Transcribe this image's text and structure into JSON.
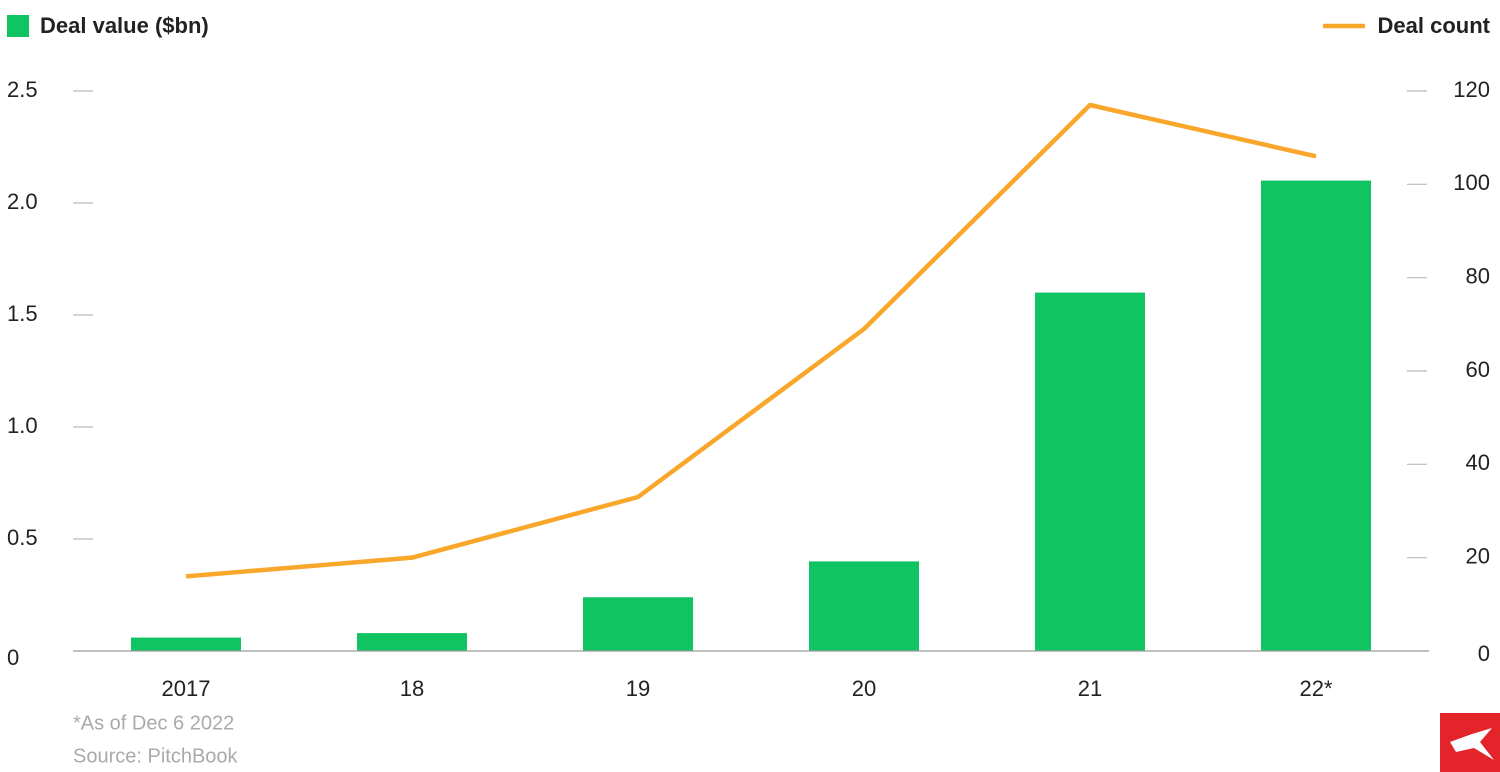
{
  "chart_data": {
    "type": "bar",
    "categories": [
      "2017",
      "18",
      "19",
      "20",
      "21",
      "22*"
    ],
    "series": [
      {
        "name": "Deal value ($bn)",
        "type": "bar",
        "color": "#10c462",
        "axis": "y",
        "values": [
          0.06,
          0.08,
          0.24,
          0.4,
          1.6,
          2.1
        ]
      },
      {
        "name": "Deal count",
        "type": "line",
        "color": "#f9a72b",
        "axis": "y2",
        "values": [
          16,
          20,
          33,
          69,
          117,
          106
        ]
      }
    ],
    "ylim": [
      0,
      2.5
    ],
    "yticks": [
      0,
      0.5,
      {
        "value": 1,
        "label": "1.0"
      },
      1.5,
      {
        "value": 2,
        "label": "2.0"
      },
      2.5
    ],
    "y2lim": [
      0,
      120
    ],
    "y2ticks": [
      0,
      20,
      40,
      60,
      80,
      100,
      120
    ],
    "footnote": "*As of Dec 6 2022",
    "source": "Source: PitchBook"
  }
}
